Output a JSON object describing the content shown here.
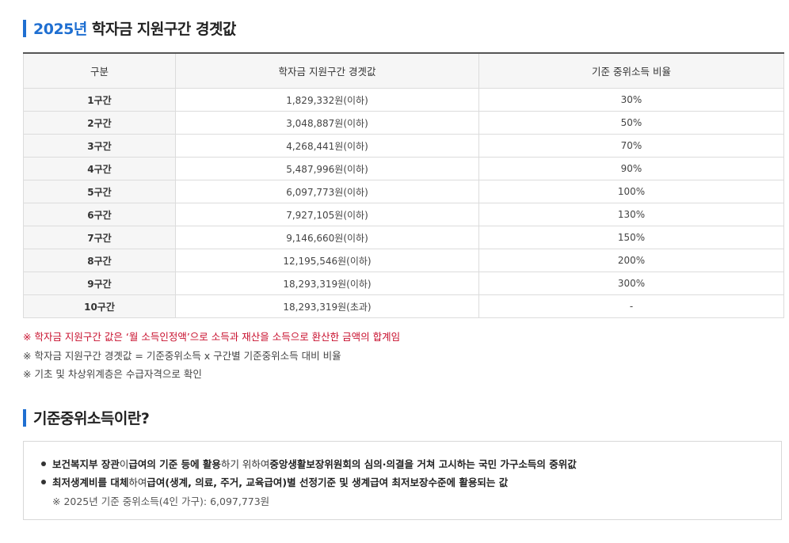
{
  "section1": {
    "year": "2025년",
    "title": "학자금 지원구간 경곗값"
  },
  "table": {
    "headers": [
      "구분",
      "학자금 지원구간 경곗값",
      "기준 중위소득 비율"
    ],
    "rows": [
      [
        "1구간",
        "1,829,332원(이하)",
        "30%"
      ],
      [
        "2구간",
        "3,048,887원(이하)",
        "50%"
      ],
      [
        "3구간",
        "4,268,441원(이하)",
        "70%"
      ],
      [
        "4구간",
        "5,487,996원(이하)",
        "90%"
      ],
      [
        "5구간",
        "6,097,773원(이하)",
        "100%"
      ],
      [
        "6구간",
        "7,927,105원(이하)",
        "130%"
      ],
      [
        "7구간",
        "9,146,660원(이하)",
        "150%"
      ],
      [
        "8구간",
        "12,195,546원(이하)",
        "200%"
      ],
      [
        "9구간",
        "18,293,319원(이하)",
        "300%"
      ],
      [
        "10구간",
        "18,293,319원(초과)",
        "-"
      ]
    ]
  },
  "notes": [
    "※ 학자금 지원구간 값은 ‘월 소득인정액’으로 소득과 재산을 소득으로 환산한 금액의 합계임",
    "※ 학자금 지원구간 경곗값 = 기준중위소득 x 구간별 기준중위소득 대비 비율",
    "※ 기초 및 차상위계층은 수급자격으로 확인"
  ],
  "section2": {
    "title": "기준중위소득이란?"
  },
  "definition": {
    "item1": {
      "p1": "보건복지부 장관",
      "p2": "이 ",
      "p3": "급여의 기준 등에 활용",
      "p4": "하기 위하여 ",
      "p5": "중앙생활보장위원회의 심의·의결을 거쳐 고시하는 국민 가구소득의 중위값"
    },
    "item2": {
      "p1": "최저생계비를 대체",
      "p2": "하여 ",
      "p3": "급여(생계, 의료, 주거, 교육급여)별 선정기준 및 생계급여 최저보장수준에 활용되는 값"
    },
    "sub": "※ 2025년 기준 중위소득(4인 가구): 6,097,773원"
  },
  "colors": {
    "accent": "#1f6fd1",
    "warning": "#c8102e"
  }
}
